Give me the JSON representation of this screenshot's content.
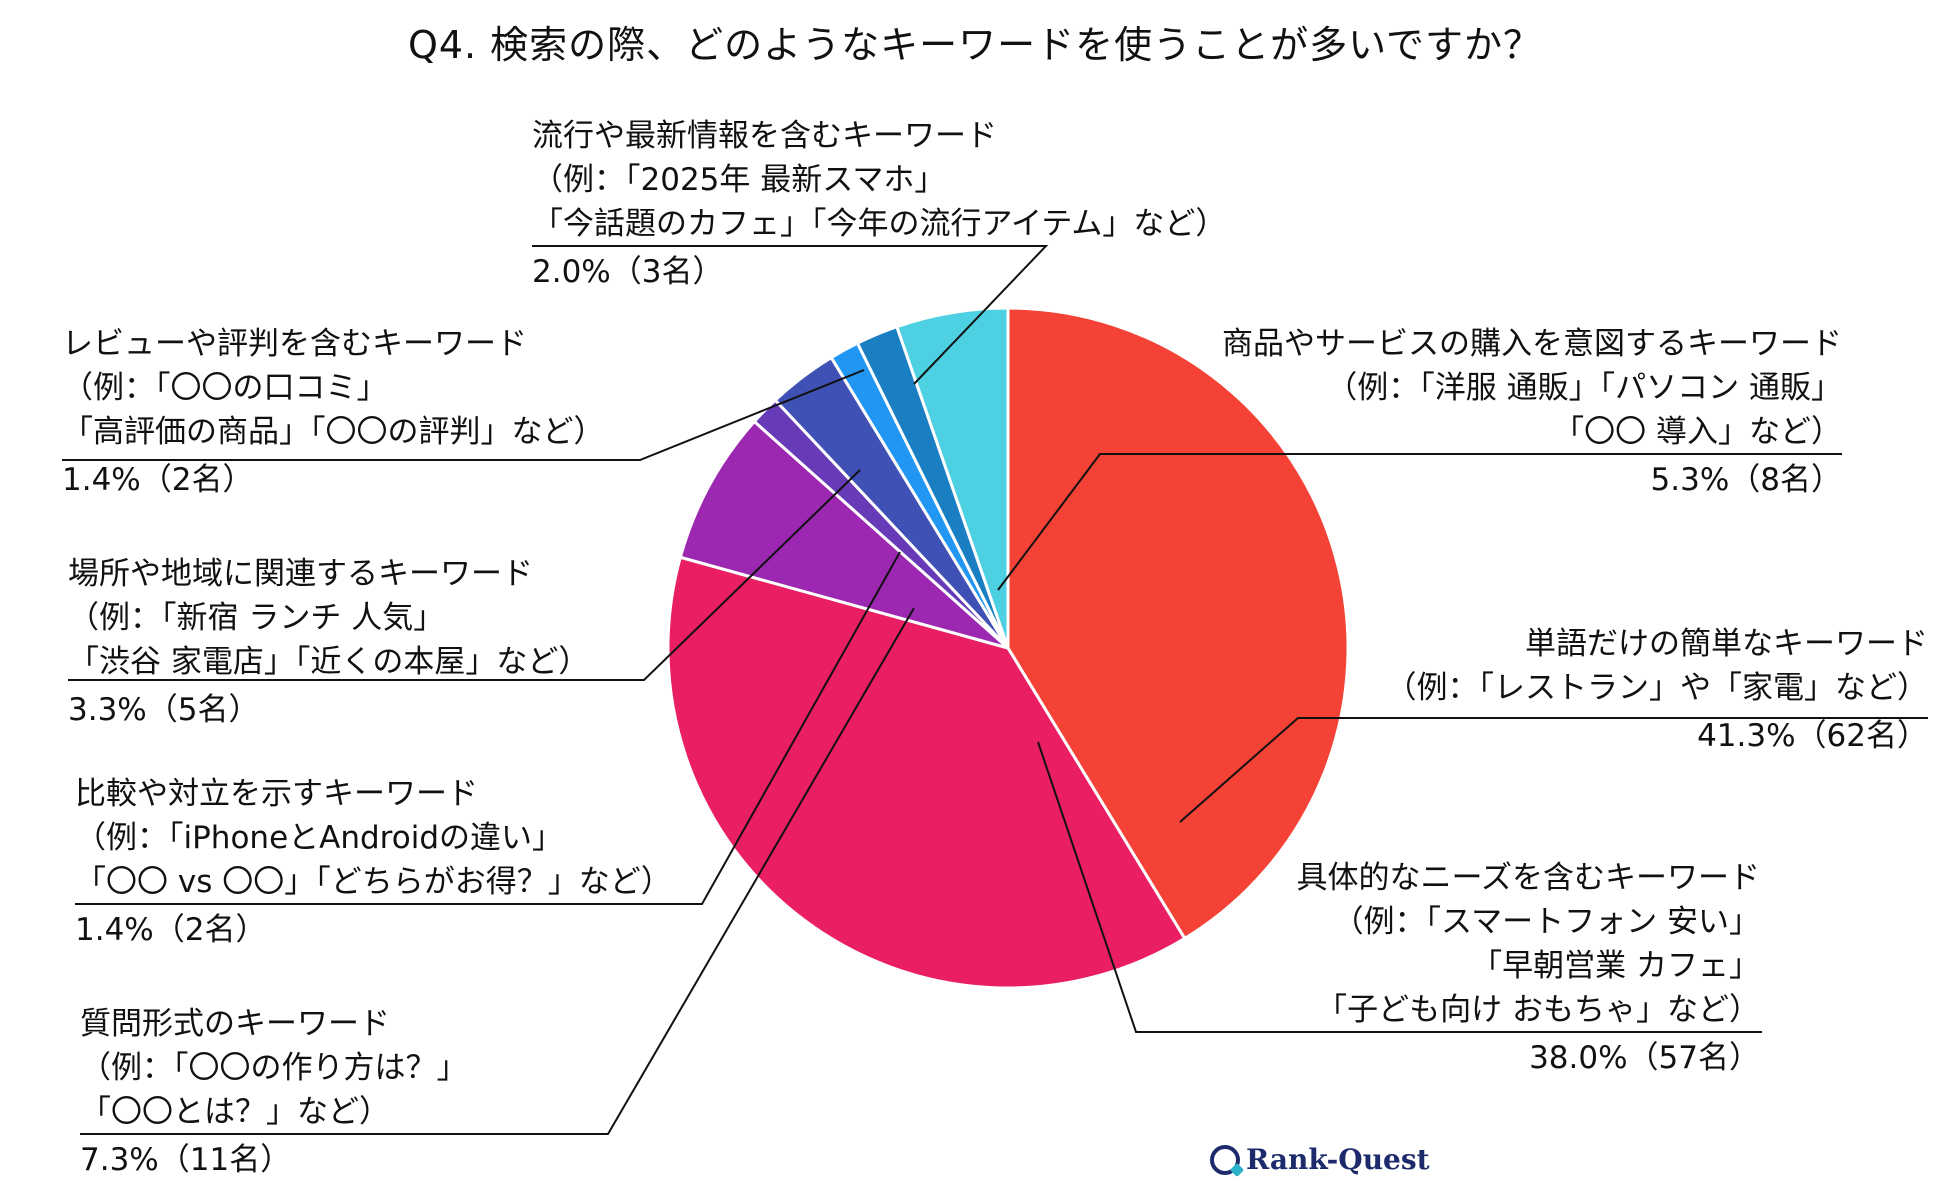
{
  "chart_data": {
    "type": "pie",
    "title": "Q4. 検索の際、どのようなキーワードを使うことが多いですか？",
    "slices": [
      {
        "value": 41.3,
        "count_label": "41.3%（62名）",
        "lines": [
          "単語だけの簡単なキーワード",
          "（例：「レストラン」や「家電」など）"
        ],
        "color": "#f44236"
      },
      {
        "value": 38.0,
        "count_label": "38.0%（57名）",
        "lines": [
          "具体的なニーズを含むキーワード",
          "（例：「スマートフォン 安い」",
          "「早朝営業 カフェ」",
          "「子ども向け おもちゃ」など）"
        ],
        "color": "#e91e63"
      },
      {
        "value": 7.3,
        "count_label": "7.3%（11名）",
        "lines": [
          "質問形式のキーワード",
          "（例：「〇〇の作り方は？」",
          "「〇〇とは？」など）"
        ],
        "color": "#9c27b0"
      },
      {
        "value": 1.4,
        "count_label": "1.4%（2名）",
        "lines": [
          "比較や対立を示すキーワード",
          "（例：「iPhoneとAndroidの違い」",
          "「〇〇 vs 〇〇」「どちらがお得？」など）"
        ],
        "color": "#673ab7"
      },
      {
        "value": 3.3,
        "count_label": "3.3%（5名）",
        "lines": [
          "場所や地域に関連するキーワード",
          "（例：「新宿 ランチ 人気」",
          "「渋谷 家電店」「近くの本屋」など）"
        ],
        "color": "#3f51b5"
      },
      {
        "value": 1.4,
        "count_label": "1.4%（2名）",
        "lines": [
          "レビューや評判を含むキーワード",
          "（例：「〇〇の口コミ」",
          "「高評価の商品」「〇〇の評判」など）"
        ],
        "color": "#2196f3"
      },
      {
        "value": 2.0,
        "count_label": "2.0%（3名）",
        "lines": [
          "流行や最新情報を含むキーワード",
          "（例：「2025年 最新スマホ」",
          "「今話題のカフェ」「今年の流行アイテム」など）"
        ],
        "color": "#1a7ec2"
      },
      {
        "value": 5.3,
        "count_label": "5.3%（8名）",
        "lines": [
          "商品やサービスの購入を意図するキーワード",
          "（例：「洋服 通販」「パソコン 通販」",
          "「〇〇 導入」など）"
        ],
        "color": "#4dd0e1"
      }
    ],
    "start": "12 o'clock",
    "direction": "clockwise"
  },
  "branding": {
    "logo_text": "Rank-Quest"
  }
}
